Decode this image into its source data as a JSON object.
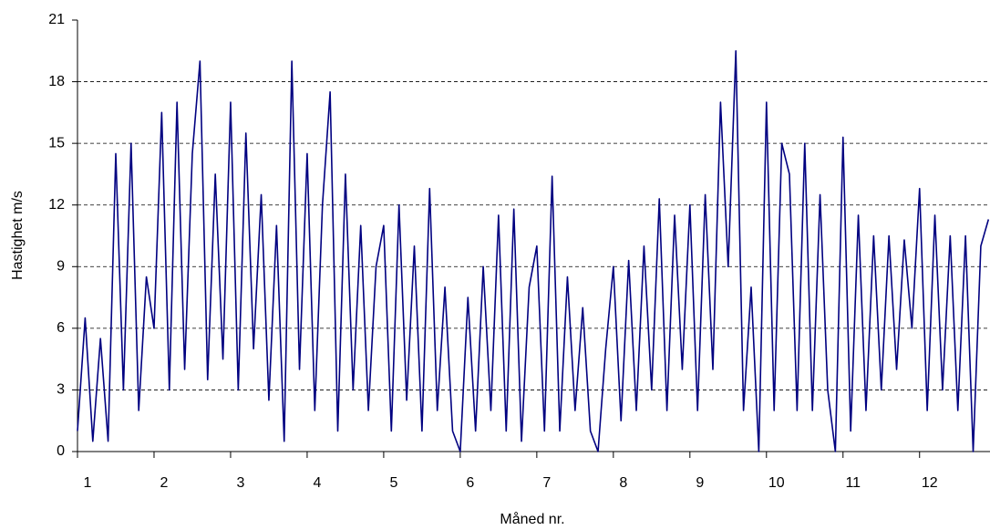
{
  "chart_data": {
    "type": "line",
    "ylabel": "Hastighet m/s",
    "xlabel": "Måned nr.",
    "xlim": [
      1,
      12.92
    ],
    "xticks": [
      1,
      2,
      3,
      4,
      5,
      6,
      7,
      8,
      9,
      10,
      11,
      12
    ],
    "ylim": [
      0,
      21
    ],
    "yticks": [
      0,
      3,
      6,
      9,
      12,
      15,
      18,
      21
    ],
    "grid": true,
    "x": [
      1,
      1.1,
      1.2,
      1.3,
      1.4,
      1.5,
      1.6,
      1.7,
      1.8,
      1.9,
      2,
      2.1,
      2.2,
      2.3,
      2.4,
      2.5,
      2.6,
      2.7,
      2.8,
      2.9,
      3,
      3.1,
      3.2,
      3.3,
      3.4,
      3.5,
      3.6,
      3.7,
      3.8,
      3.9,
      4,
      4.1,
      4.2,
      4.3,
      4.4,
      4.5,
      4.6,
      4.7,
      4.8,
      4.9,
      5,
      5.1,
      5.2,
      5.3,
      5.4,
      5.5,
      5.6,
      5.7,
      5.8,
      5.9,
      6,
      6.1,
      6.2,
      6.3,
      6.4,
      6.5,
      6.6,
      6.7,
      6.8,
      6.9,
      7,
      7.1,
      7.2,
      7.3,
      7.4,
      7.5,
      7.6,
      7.7,
      7.8,
      7.9,
      8,
      8.1,
      8.2,
      8.3,
      8.4,
      8.5,
      8.6,
      8.7,
      8.8,
      8.9,
      9,
      9.1,
      9.2,
      9.3,
      9.4,
      9.5,
      9.6,
      9.7,
      9.8,
      9.9,
      10,
      10.1,
      10.2,
      10.3,
      10.4,
      10.5,
      10.6,
      10.7,
      10.8,
      10.9,
      11,
      11.1,
      11.2,
      11.3,
      11.4,
      11.5,
      11.6,
      11.7,
      11.8,
      11.9,
      12,
      12.1,
      12.2,
      12.3,
      12.4,
      12.5,
      12.6,
      12.7,
      12.8,
      12.9
    ],
    "series": [
      {
        "color": "#000080",
        "values": [
          1,
          6.5,
          0.5,
          5.5,
          0.5,
          14.5,
          3,
          15,
          2,
          8.5,
          6,
          16.5,
          3,
          17,
          4,
          14.5,
          19,
          3.5,
          13.5,
          4.5,
          17,
          3,
          15.5,
          5,
          12.5,
          2.5,
          11,
          0.5,
          19,
          4,
          14.5,
          2,
          12,
          17.5,
          1,
          13.5,
          3,
          11,
          2,
          9,
          11,
          1,
          12,
          2.5,
          10,
          1,
          12.8,
          2,
          8,
          1,
          0,
          7.5,
          1,
          9,
          2,
          11.5,
          1,
          11.8,
          0.5,
          8,
          10,
          1,
          13.4,
          1,
          8.5,
          2,
          7,
          1,
          0,
          5,
          9,
          1.5,
          9.3,
          2,
          10,
          3,
          12.3,
          2,
          11.5,
          4,
          12,
          2,
          12.5,
          4,
          17,
          9,
          19.5,
          2,
          8,
          0,
          17,
          2,
          15,
          13.5,
          2,
          15,
          2,
          12.5,
          3,
          0,
          15.3,
          1,
          11.5,
          2,
          10.5,
          3,
          10.5,
          4,
          10.3,
          6,
          12.8,
          2,
          11.5,
          3,
          10.5,
          2,
          10.5,
          0,
          10,
          11.3
        ]
      }
    ]
  }
}
